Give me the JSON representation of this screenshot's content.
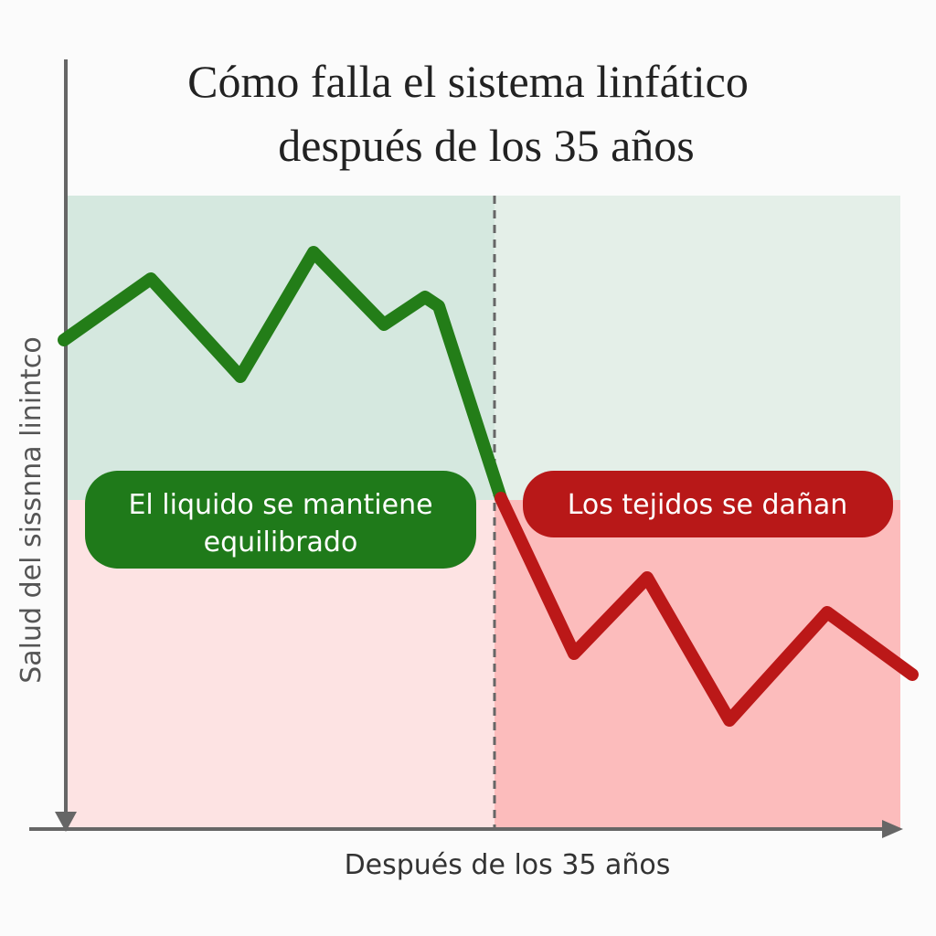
{
  "title": {
    "line1": "Cómo falla el sistema linfático",
    "line2": "después de los 35 años"
  },
  "axes": {
    "y_label": "Salud del sissnna linintco",
    "x_label": "Después de los 35 años"
  },
  "labels": {
    "healthy": {
      "line1": "El liquido se mantiene",
      "line2": "equilibrado"
    },
    "damaged": "Los tejidos se dañan"
  }
}
